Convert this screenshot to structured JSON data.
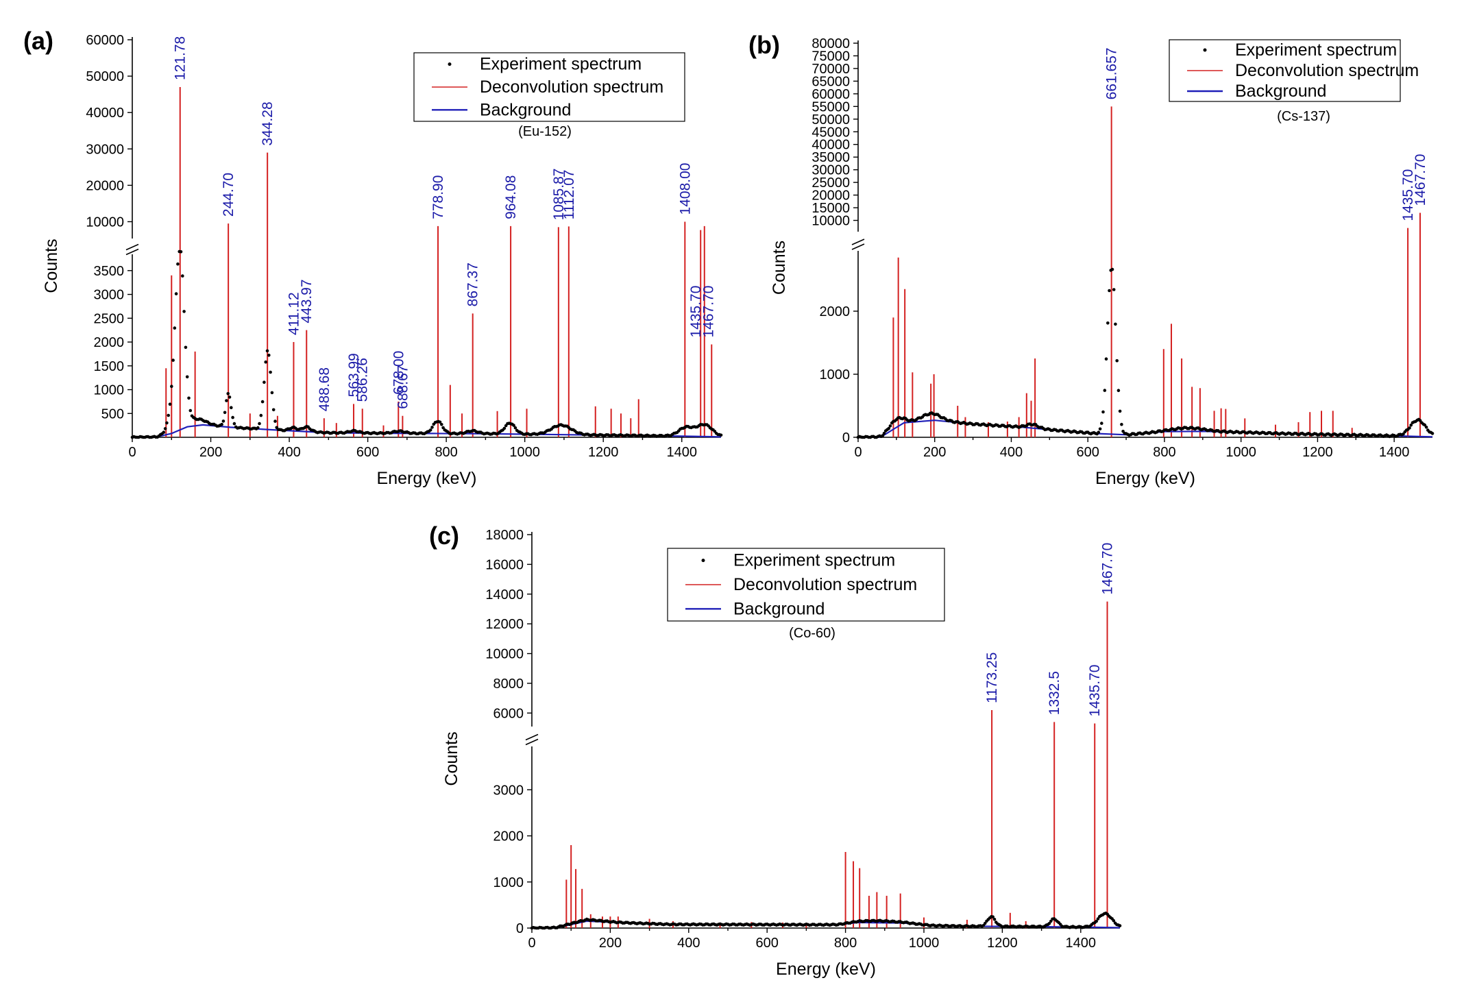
{
  "chart_data": [
    {
      "id": "a",
      "type": "line",
      "panel_label": "(a)",
      "isotope": "(Eu-152)",
      "xlabel": "Energy (keV)",
      "ylabel": "Counts",
      "xlim": [
        0,
        1500
      ],
      "xticks": [
        "0",
        "200",
        "400",
        "600",
        "800",
        "1000",
        "1200",
        "1400"
      ],
      "y_axis_broken": true,
      "ylim_lower": [
        0,
        3900
      ],
      "ylim_upper": [
        5000,
        60000
      ],
      "yticks_lower": [
        "500",
        "1000",
        "1500",
        "2000",
        "2500",
        "3000",
        "3500"
      ],
      "yticks_upper": [
        "10000",
        "20000",
        "30000",
        "40000",
        "50000",
        "60000"
      ],
      "legend": [
        "Experiment spectrum",
        "Deconvolution spectrum",
        "Background"
      ],
      "peak_labels": [
        {
          "energy": 121.78,
          "text": "121.78"
        },
        {
          "energy": 244.7,
          "text": "244.70"
        },
        {
          "energy": 344.28,
          "text": "344.28"
        },
        {
          "energy": 411.12,
          "text": "411.12"
        },
        {
          "energy": 443.97,
          "text": "443.97"
        },
        {
          "energy": 488.68,
          "text": "488.68"
        },
        {
          "energy": 563.99,
          "text": "563.99"
        },
        {
          "energy": 586.26,
          "text": "586.26"
        },
        {
          "energy": 678.0,
          "text": "678.00"
        },
        {
          "energy": 688.67,
          "text": "688.67"
        },
        {
          "energy": 778.9,
          "text": "778.90"
        },
        {
          "energy": 867.37,
          "text": "867.37"
        },
        {
          "energy": 964.08,
          "text": "964.08"
        },
        {
          "energy": 1085.87,
          "text": "1085.87"
        },
        {
          "energy": 1112.07,
          "text": "1112.07"
        },
        {
          "energy": 1408.0,
          "text": "1408.00"
        },
        {
          "energy": 1435.7,
          "text": "1435.70"
        },
        {
          "energy": 1467.7,
          "text": "1467.70"
        }
      ],
      "deconvolution_lines": [
        [
          86,
          1450
        ],
        [
          100,
          3400
        ],
        [
          121.78,
          47000
        ],
        [
          160,
          1800
        ],
        [
          244.7,
          9500
        ],
        [
          300,
          500
        ],
        [
          344.28,
          29000
        ],
        [
          370,
          450
        ],
        [
          411.12,
          2000
        ],
        [
          443.97,
          2250
        ],
        [
          488.68,
          400
        ],
        [
          520,
          300
        ],
        [
          563.99,
          700
        ],
        [
          586.26,
          600
        ],
        [
          640,
          250
        ],
        [
          678.0,
          750
        ],
        [
          688.67,
          450
        ],
        [
          778.9,
          8800
        ],
        [
          810,
          1100
        ],
        [
          840,
          500
        ],
        [
          867.37,
          2600
        ],
        [
          930,
          550
        ],
        [
          964.08,
          8800
        ],
        [
          1005,
          600
        ],
        [
          1085.87,
          8500
        ],
        [
          1112.07,
          8700
        ],
        [
          1180,
          650
        ],
        [
          1220,
          600
        ],
        [
          1245,
          500
        ],
        [
          1270,
          400
        ],
        [
          1290,
          800
        ],
        [
          1408.0,
          10000
        ],
        [
          1448,
          7700
        ],
        [
          1457.7,
          8800
        ],
        [
          1476,
          1950
        ]
      ],
      "experiment_peaks": [
        [
          110,
          700,
          14
        ],
        [
          122,
          3300,
          11
        ],
        [
          160,
          140,
          25
        ],
        [
          245,
          700,
          7
        ],
        [
          345,
          1650,
          9
        ],
        [
          410,
          70,
          10
        ],
        [
          444,
          100,
          10
        ],
        [
          565,
          45,
          12
        ],
        [
          680,
          45,
          15
        ],
        [
          778,
          260,
          12
        ],
        [
          867,
          60,
          14
        ],
        [
          962,
          230,
          13
        ],
        [
          1093,
          200,
          25
        ],
        [
          1410,
          180,
          18
        ],
        [
          1458,
          250,
          20
        ]
      ],
      "background": [
        [
          0,
          0
        ],
        [
          60,
          5
        ],
        [
          100,
          80
        ],
        [
          140,
          220
        ],
        [
          180,
          260
        ],
        [
          250,
          210
        ],
        [
          350,
          160
        ],
        [
          500,
          95
        ],
        [
          650,
          85
        ],
        [
          760,
          80
        ],
        [
          900,
          75
        ],
        [
          1000,
          65
        ],
        [
          1100,
          55
        ],
        [
          1300,
          35
        ],
        [
          1400,
          25
        ],
        [
          1500,
          8
        ]
      ]
    },
    {
      "id": "b",
      "type": "line",
      "panel_label": "(b)",
      "isotope": "(Cs-137)",
      "xlabel": "Energy (keV)",
      "ylabel": "Counts",
      "xlim": [
        0,
        1500
      ],
      "xticks": [
        "0",
        "200",
        "400",
        "600",
        "800",
        "1000",
        "1200",
        "1400"
      ],
      "y_axis_broken": true,
      "ylim_lower": [
        0,
        3000
      ],
      "ylim_upper": [
        5000,
        80000
      ],
      "yticks_lower": [
        "0",
        "1000",
        "2000"
      ],
      "yticks_upper": [
        "10000",
        "15000",
        "20000",
        "25000",
        "30000",
        "35000",
        "40000",
        "45000",
        "50000",
        "55000",
        "60000",
        "65000",
        "70000",
        "75000",
        "80000"
      ],
      "legend": [
        "Experiment spectrum",
        "Deconvolution spectrum",
        "Background"
      ],
      "peak_labels": [
        {
          "energy": 661.657,
          "text": "661.657"
        },
        {
          "energy": 1435.7,
          "text": "1435.70"
        },
        {
          "energy": 1467.7,
          "text": "1467.70"
        }
      ],
      "deconvolution_lines": [
        [
          92,
          1900
        ],
        [
          105,
          2850
        ],
        [
          122,
          2350
        ],
        [
          142,
          1030
        ],
        [
          190,
          850
        ],
        [
          198,
          1000
        ],
        [
          260,
          500
        ],
        [
          280,
          320
        ],
        [
          340,
          240
        ],
        [
          390,
          250
        ],
        [
          420,
          320
        ],
        [
          440,
          700
        ],
        [
          452,
          580
        ],
        [
          462,
          1250
        ],
        [
          661.657,
          55000
        ],
        [
          798,
          1400
        ],
        [
          818,
          1800
        ],
        [
          845,
          1250
        ],
        [
          872,
          800
        ],
        [
          893,
          780
        ],
        [
          930,
          420
        ],
        [
          948,
          460
        ],
        [
          960,
          450
        ],
        [
          1010,
          300
        ],
        [
          1090,
          200
        ],
        [
          1150,
          240
        ],
        [
          1180,
          400
        ],
        [
          1210,
          420
        ],
        [
          1240,
          420
        ],
        [
          1290,
          150
        ],
        [
          1435.7,
          7000
        ],
        [
          1467.7,
          13000
        ]
      ],
      "experiment_peaks": [
        [
          100,
          130,
          18
        ],
        [
          190,
          110,
          25
        ],
        [
          455,
          60,
          15
        ],
        [
          662,
          2650,
          11
        ],
        [
          860,
          55,
          40
        ],
        [
          1462,
          260,
          20
        ]
      ],
      "background": [
        [
          0,
          0
        ],
        [
          60,
          5
        ],
        [
          90,
          120
        ],
        [
          120,
          230
        ],
        [
          200,
          270
        ],
        [
          300,
          210
        ],
        [
          420,
          165
        ],
        [
          520,
          110
        ],
        [
          620,
          60
        ],
        [
          700,
          40
        ],
        [
          800,
          90
        ],
        [
          900,
          95
        ],
        [
          1000,
          80
        ],
        [
          1100,
          60
        ],
        [
          1300,
          35
        ],
        [
          1420,
          20
        ],
        [
          1500,
          8
        ]
      ]
    },
    {
      "id": "c",
      "type": "line",
      "panel_label": "(c)",
      "isotope": "(Co-60)",
      "xlabel": "Energy (keV)",
      "ylabel": "Counts",
      "xlim": [
        0,
        1500
      ],
      "xticks": [
        "0",
        "200",
        "400",
        "600",
        "800",
        "1000",
        "1200",
        "1400"
      ],
      "y_axis_broken": true,
      "ylim_lower": [
        0,
        4000
      ],
      "ylim_upper": [
        5000,
        18000
      ],
      "yticks_lower": [
        "0",
        "1000",
        "2000",
        "3000"
      ],
      "yticks_upper": [
        "6000",
        "8000",
        "10000",
        "12000",
        "14000",
        "16000",
        "18000"
      ],
      "legend": [
        "Experiment spectrum",
        "Deconvolution spectrum",
        "Background"
      ],
      "peak_labels": [
        {
          "energy": 1173.25,
          "text": "1173.25"
        },
        {
          "energy": 1332.5,
          "text": "1332.5"
        },
        {
          "energy": 1435.7,
          "text": "1435.70"
        },
        {
          "energy": 1467.7,
          "text": "1467.70"
        }
      ],
      "deconvolution_lines": [
        [
          88,
          1050
        ],
        [
          100,
          1800
        ],
        [
          112,
          1280
        ],
        [
          128,
          850
        ],
        [
          150,
          300
        ],
        [
          180,
          250
        ],
        [
          200,
          250
        ],
        [
          220,
          250
        ],
        [
          300,
          200
        ],
        [
          360,
          150
        ],
        [
          480,
          120
        ],
        [
          560,
          130
        ],
        [
          640,
          120
        ],
        [
          700,
          110
        ],
        [
          800,
          1650
        ],
        [
          820,
          1450
        ],
        [
          836,
          1300
        ],
        [
          860,
          700
        ],
        [
          880,
          780
        ],
        [
          905,
          700
        ],
        [
          940,
          750
        ],
        [
          1000,
          230
        ],
        [
          1110,
          180
        ],
        [
          1173.25,
          6200
        ],
        [
          1220,
          330
        ],
        [
          1260,
          150
        ],
        [
          1332.5,
          5400
        ],
        [
          1435.7,
          5300
        ],
        [
          1467.7,
          13500
        ]
      ],
      "experiment_peaks": [
        [
          140,
          30,
          40
        ],
        [
          880,
          40,
          50
        ],
        [
          1172,
          210,
          10
        ],
        [
          1332,
          170,
          10
        ],
        [
          1462,
          300,
          18
        ]
      ],
      "background": [
        [
          0,
          0
        ],
        [
          60,
          5
        ],
        [
          90,
          60
        ],
        [
          140,
          150
        ],
        [
          220,
          120
        ],
        [
          350,
          80
        ],
        [
          600,
          75
        ],
        [
          780,
          70
        ],
        [
          830,
          120
        ],
        [
          950,
          110
        ],
        [
          1020,
          55
        ],
        [
          1100,
          40
        ],
        [
          1300,
          30
        ],
        [
          1420,
          20
        ],
        [
          1500,
          8
        ]
      ]
    }
  ]
}
